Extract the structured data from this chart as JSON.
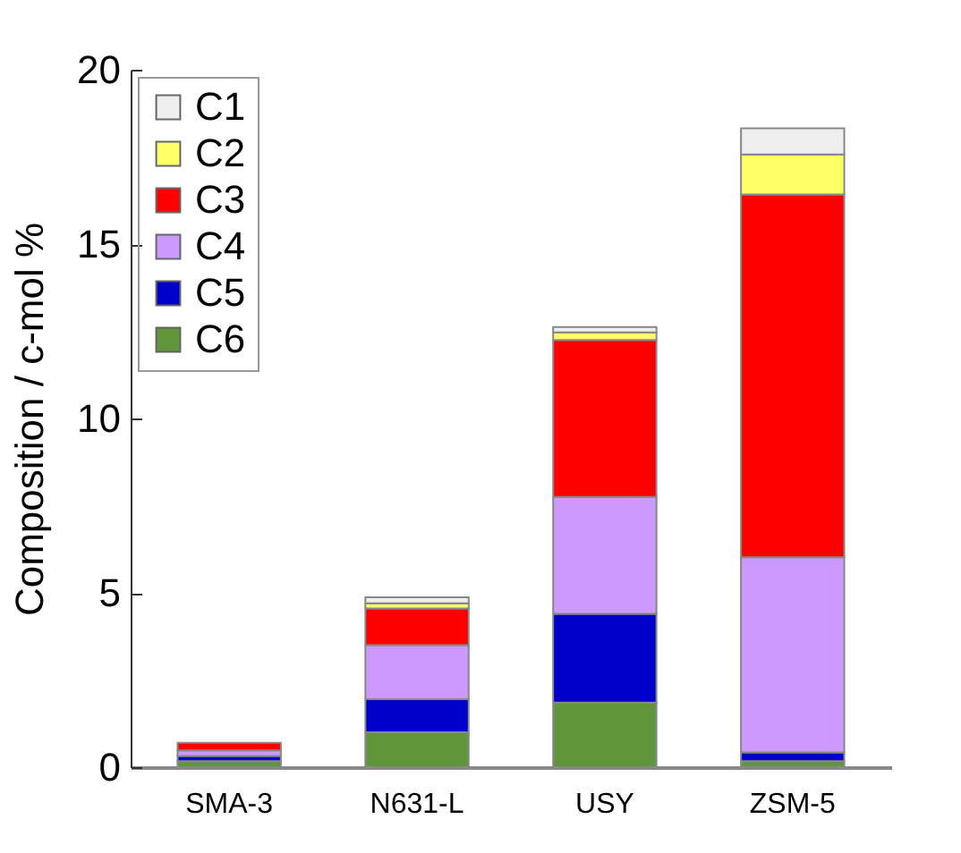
{
  "chart_data": {
    "type": "bar",
    "stacked": true,
    "ylabel": "Composition   / c-mol %",
    "categories": [
      "SMA-3",
      "N631-L",
      "USY",
      "ZSM-5"
    ],
    "series": [
      {
        "name": "C6",
        "color": "#5f963c",
        "values": [
          0.17,
          1.0,
          1.85,
          0.17
        ]
      },
      {
        "name": "C5",
        "color": "#0000cc",
        "values": [
          0.15,
          0.95,
          2.55,
          0.25
        ]
      },
      {
        "name": "C4",
        "color": "#cc99ff",
        "values": [
          0.16,
          1.55,
          3.35,
          5.6
        ]
      },
      {
        "name": "C3",
        "color": "#ff0000",
        "values": [
          0.22,
          1.05,
          4.5,
          10.4
        ]
      },
      {
        "name": "C2",
        "color": "#ffff66",
        "values": [
          null,
          0.15,
          0.22,
          1.15
        ]
      },
      {
        "name": "C1",
        "color": "#eeeeee",
        "values": [
          null,
          0.17,
          0.15,
          0.75
        ]
      }
    ],
    "ylim": [
      0,
      20
    ],
    "yticks": [
      0,
      5,
      10,
      15,
      20
    ],
    "legend": "top left"
  }
}
